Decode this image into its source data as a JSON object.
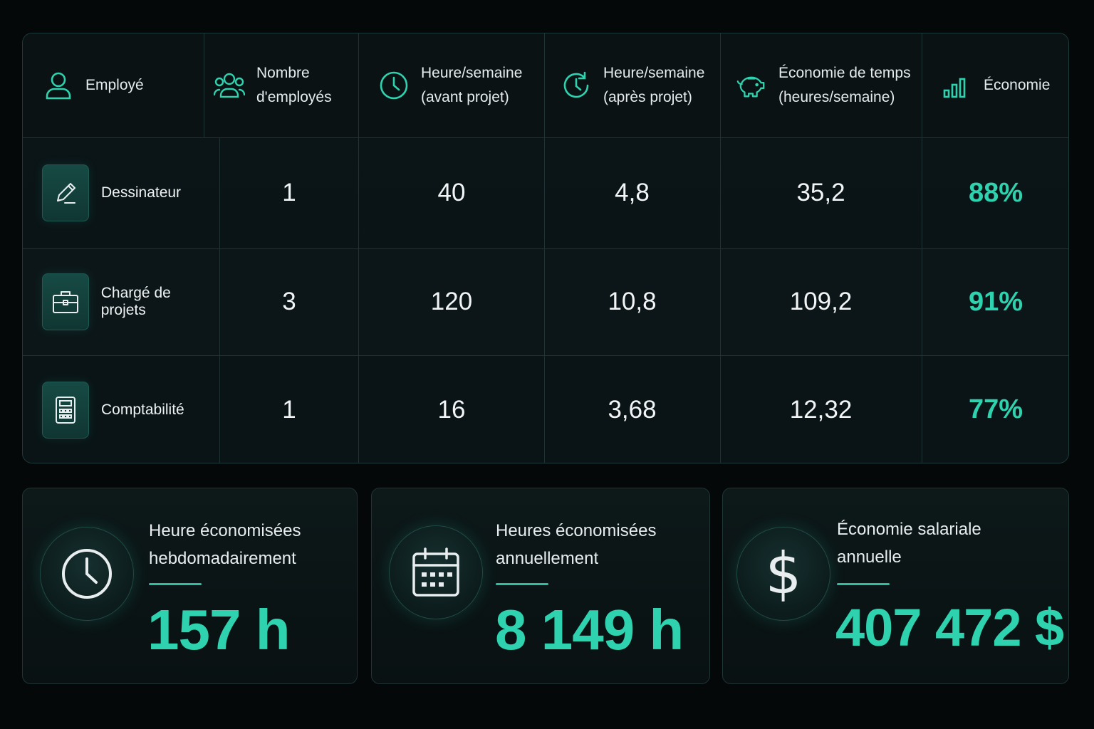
{
  "table": {
    "headers": [
      {
        "label": "Employé",
        "icon": "user-icon"
      },
      {
        "label": "Nombre\nd'employés",
        "icon": "users-icon"
      },
      {
        "label": "Heure/semaine\n(avant projet)",
        "icon": "clock-icon"
      },
      {
        "label": "Heure/semaine\n(après projet)",
        "icon": "clock-refresh-icon"
      },
      {
        "label": "Économie de temps\n(heures/semaine)",
        "icon": "piggy-bank-icon"
      },
      {
        "label": "Économie",
        "icon": "bar-chart-icon"
      }
    ],
    "rows": [
      {
        "employee": "Dessinateur",
        "icon": "pencil-icon",
        "count": "1",
        "before": "40",
        "after": "4,8",
        "saved": "35,2",
        "pct": "88%"
      },
      {
        "employee": "Chargé de projets",
        "icon": "briefcase-icon",
        "count": "3",
        "before": "120",
        "after": "10,8",
        "saved": "109,2",
        "pct": "91%"
      },
      {
        "employee": "Comptabilité",
        "icon": "calculator-icon",
        "count": "1",
        "before": "16",
        "after": "3,68",
        "saved": "12,32",
        "pct": "77%"
      }
    ]
  },
  "kpis": [
    {
      "title": "Heure économisées\nhebdomadairement",
      "value": "157 h",
      "icon": "clock-icon"
    },
    {
      "title": "Heures économisées\nannuellement",
      "value": "8 149 h",
      "icon": "calendar-icon"
    },
    {
      "title": "Économie salariale\nannuelle",
      "value": "407 472 $",
      "icon": "dollar-icon"
    }
  ],
  "colors": {
    "accent": "#2fd2ae",
    "background": "#050809",
    "card": "#0b1518",
    "border": "#1f3234"
  }
}
